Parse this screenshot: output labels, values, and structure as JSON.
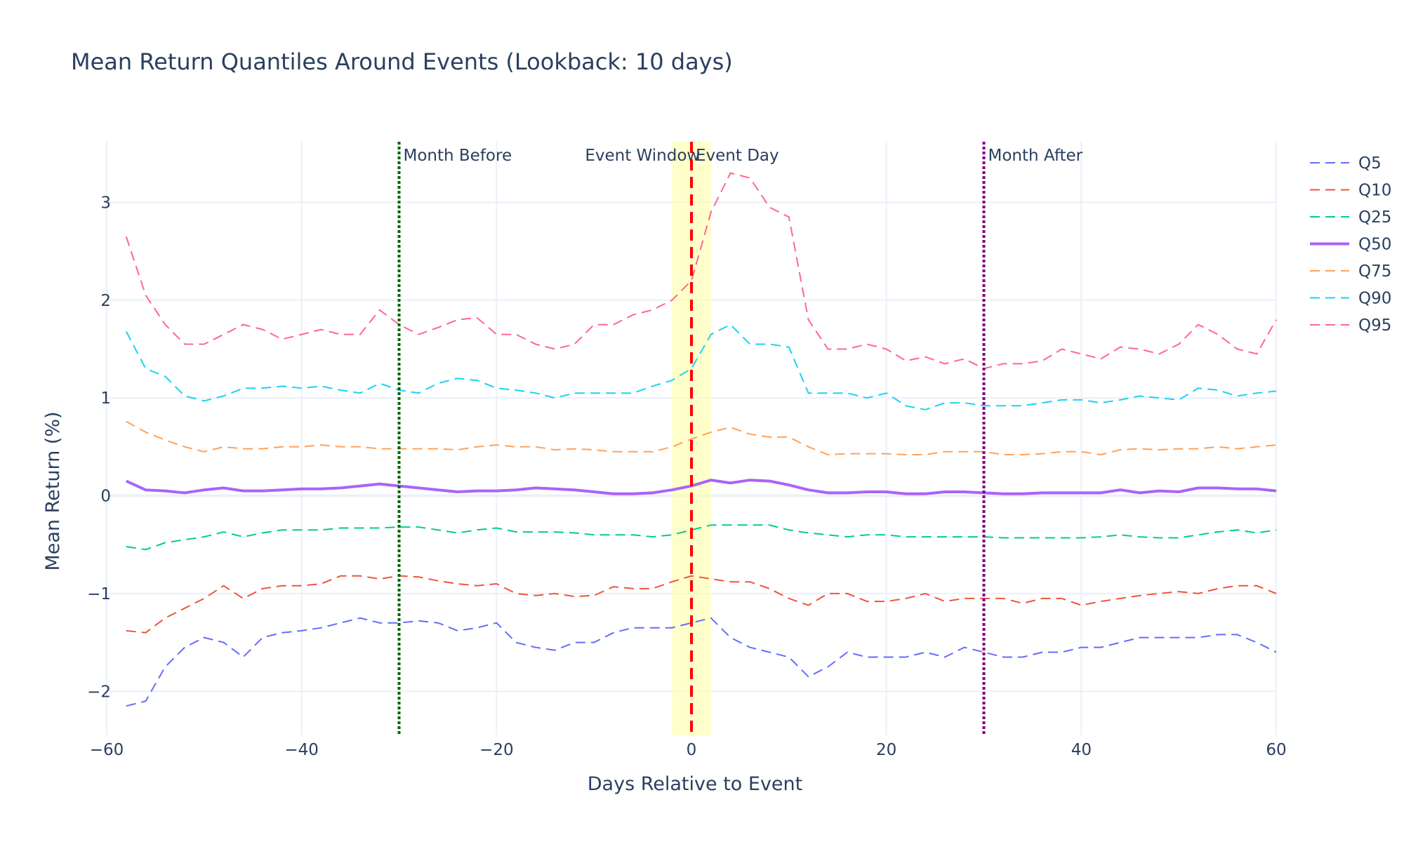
{
  "chart_data": {
    "type": "line",
    "title": "Mean Return Quantiles Around Events (Lookback: 10 days)",
    "xlabel": "Days Relative to Event",
    "ylabel": "Mean Return (%)",
    "xlim": [
      -60,
      60
    ],
    "ylim": [
      -2.45,
      3.62
    ],
    "xticks": [
      -60,
      -40,
      -20,
      0,
      20,
      40,
      60
    ],
    "xtick_labels": [
      "−60",
      "−40",
      "−20",
      "0",
      "20",
      "40",
      "60"
    ],
    "yticks": [
      -2,
      -1,
      0,
      1,
      2,
      3
    ],
    "ytick_labels": [
      "−2",
      "−1",
      "0",
      "1",
      "2",
      "3"
    ],
    "grid": true,
    "legend_position": "top-right",
    "x": [
      -58,
      -56,
      -54,
      -52,
      -50,
      -48,
      -46,
      -44,
      -42,
      -40,
      -38,
      -36,
      -34,
      -32,
      -30,
      -28,
      -26,
      -24,
      -22,
      -20,
      -18,
      -16,
      -14,
      -12,
      -10,
      -8,
      -6,
      -4,
      -2,
      0,
      2,
      4,
      6,
      8,
      10,
      12,
      14,
      16,
      18,
      20,
      22,
      24,
      26,
      28,
      30,
      32,
      34,
      36,
      38,
      40,
      42,
      44,
      46,
      48,
      50,
      52,
      54,
      56,
      58,
      60
    ],
    "series": [
      {
        "name": "Q5",
        "color": "#636efa",
        "dash": "dash",
        "values": [
          -2.15,
          -2.1,
          -1.75,
          -1.55,
          -1.45,
          -1.5,
          -1.65,
          -1.45,
          -1.4,
          -1.38,
          -1.35,
          -1.3,
          -1.25,
          -1.3,
          -1.3,
          -1.28,
          -1.3,
          -1.38,
          -1.35,
          -1.3,
          -1.5,
          -1.55,
          -1.58,
          -1.5,
          -1.5,
          -1.4,
          -1.35,
          -1.35,
          -1.35,
          -1.3,
          -1.25,
          -1.45,
          -1.55,
          -1.6,
          -1.65,
          -1.85,
          -1.75,
          -1.6,
          -1.65,
          -1.65,
          -1.65,
          -1.6,
          -1.65,
          -1.55,
          -1.6,
          -1.65,
          -1.65,
          -1.6,
          -1.6,
          -1.55,
          -1.55,
          -1.5,
          -1.45,
          -1.45,
          -1.45,
          -1.45,
          -1.42,
          -1.42,
          -1.5,
          -1.6
        ]
      },
      {
        "name": "Q10",
        "color": "#ef553b",
        "dash": "dash",
        "values": [
          -1.38,
          -1.4,
          -1.25,
          -1.15,
          -1.05,
          -0.92,
          -1.05,
          -0.95,
          -0.92,
          -0.92,
          -0.9,
          -0.82,
          -0.82,
          -0.85,
          -0.82,
          -0.83,
          -0.87,
          -0.9,
          -0.92,
          -0.9,
          -1.0,
          -1.02,
          -1.0,
          -1.03,
          -1.02,
          -0.93,
          -0.95,
          -0.95,
          -0.88,
          -0.82,
          -0.85,
          -0.88,
          -0.88,
          -0.95,
          -1.05,
          -1.12,
          -1.0,
          -1.0,
          -1.08,
          -1.08,
          -1.05,
          -1.0,
          -1.08,
          -1.05,
          -1.05,
          -1.05,
          -1.1,
          -1.05,
          -1.05,
          -1.12,
          -1.08,
          -1.05,
          -1.02,
          -1.0,
          -0.98,
          -1.0,
          -0.95,
          -0.92,
          -0.92,
          -1.0
        ]
      },
      {
        "name": "Q25",
        "color": "#00cc96",
        "dash": "dash",
        "values": [
          -0.52,
          -0.55,
          -0.48,
          -0.45,
          -0.42,
          -0.37,
          -0.42,
          -0.38,
          -0.35,
          -0.35,
          -0.35,
          -0.33,
          -0.33,
          -0.33,
          -0.32,
          -0.32,
          -0.35,
          -0.38,
          -0.35,
          -0.33,
          -0.37,
          -0.37,
          -0.37,
          -0.38,
          -0.4,
          -0.4,
          -0.4,
          -0.42,
          -0.4,
          -0.35,
          -0.3,
          -0.3,
          -0.3,
          -0.3,
          -0.35,
          -0.38,
          -0.4,
          -0.42,
          -0.4,
          -0.4,
          -0.42,
          -0.42,
          -0.42,
          -0.42,
          -0.42,
          -0.43,
          -0.43,
          -0.43,
          -0.43,
          -0.43,
          -0.42,
          -0.4,
          -0.42,
          -0.43,
          -0.43,
          -0.4,
          -0.37,
          -0.35,
          -0.38,
          -0.35
        ]
      },
      {
        "name": "Q50",
        "color": "#ab63fa",
        "dash": "solid",
        "values": [
          0.15,
          0.06,
          0.05,
          0.03,
          0.06,
          0.08,
          0.05,
          0.05,
          0.06,
          0.07,
          0.07,
          0.08,
          0.1,
          0.12,
          0.1,
          0.08,
          0.06,
          0.04,
          0.05,
          0.05,
          0.06,
          0.08,
          0.07,
          0.06,
          0.04,
          0.02,
          0.02,
          0.03,
          0.06,
          0.1,
          0.16,
          0.13,
          0.16,
          0.15,
          0.11,
          0.06,
          0.03,
          0.03,
          0.04,
          0.04,
          0.02,
          0.02,
          0.04,
          0.04,
          0.03,
          0.02,
          0.02,
          0.03,
          0.03,
          0.03,
          0.03,
          0.06,
          0.03,
          0.05,
          0.04,
          0.08,
          0.08,
          0.07,
          0.07,
          0.05
        ]
      },
      {
        "name": "Q75",
        "color": "#ffa15a",
        "dash": "dash",
        "values": [
          0.76,
          0.65,
          0.57,
          0.5,
          0.45,
          0.5,
          0.48,
          0.48,
          0.5,
          0.5,
          0.52,
          0.5,
          0.5,
          0.48,
          0.48,
          0.48,
          0.48,
          0.47,
          0.5,
          0.52,
          0.5,
          0.5,
          0.47,
          0.48,
          0.47,
          0.45,
          0.45,
          0.45,
          0.5,
          0.58,
          0.65,
          0.7,
          0.63,
          0.6,
          0.6,
          0.5,
          0.42,
          0.43,
          0.43,
          0.43,
          0.42,
          0.42,
          0.45,
          0.45,
          0.45,
          0.42,
          0.42,
          0.43,
          0.45,
          0.45,
          0.42,
          0.47,
          0.48,
          0.47,
          0.48,
          0.48,
          0.5,
          0.48,
          0.5,
          0.52
        ]
      },
      {
        "name": "Q90",
        "color": "#19d3f3",
        "dash": "dash",
        "values": [
          1.68,
          1.3,
          1.22,
          1.02,
          0.97,
          1.02,
          1.1,
          1.1,
          1.12,
          1.1,
          1.12,
          1.08,
          1.05,
          1.15,
          1.08,
          1.05,
          1.15,
          1.2,
          1.18,
          1.1,
          1.08,
          1.05,
          1.0,
          1.05,
          1.05,
          1.05,
          1.05,
          1.12,
          1.18,
          1.3,
          1.65,
          1.75,
          1.55,
          1.55,
          1.52,
          1.05,
          1.05,
          1.05,
          1.0,
          1.05,
          0.92,
          0.88,
          0.95,
          0.95,
          0.92,
          0.92,
          0.92,
          0.95,
          0.98,
          0.98,
          0.95,
          0.98,
          1.02,
          1.0,
          0.98,
          1.1,
          1.08,
          1.02,
          1.05,
          1.07
        ]
      },
      {
        "name": "Q95",
        "color": "#ff6692",
        "dash": "dash",
        "values": [
          2.65,
          2.05,
          1.75,
          1.55,
          1.55,
          1.65,
          1.75,
          1.7,
          1.6,
          1.65,
          1.7,
          1.65,
          1.65,
          1.9,
          1.75,
          1.65,
          1.72,
          1.8,
          1.82,
          1.65,
          1.65,
          1.55,
          1.5,
          1.55,
          1.75,
          1.75,
          1.85,
          1.9,
          2.0,
          2.2,
          2.9,
          3.3,
          3.25,
          2.95,
          2.85,
          1.8,
          1.5,
          1.5,
          1.55,
          1.5,
          1.38,
          1.42,
          1.35,
          1.4,
          1.3,
          1.35,
          1.35,
          1.38,
          1.5,
          1.45,
          1.4,
          1.52,
          1.5,
          1.45,
          1.55,
          1.75,
          1.65,
          1.5,
          1.45,
          1.8
        ]
      }
    ],
    "vlines": [
      {
        "x": -30,
        "label": "Month Before",
        "color": "#006400",
        "dash": "dot"
      },
      {
        "x": 0,
        "label": "Event Day",
        "color": "#ff0000",
        "dash": "dash"
      },
      {
        "x": 30,
        "label": "Month After",
        "color": "#800080",
        "dash": "dot"
      }
    ],
    "band": {
      "x0": -2,
      "x1": 2,
      "label": "Event Window",
      "color": "#ffff99"
    }
  }
}
